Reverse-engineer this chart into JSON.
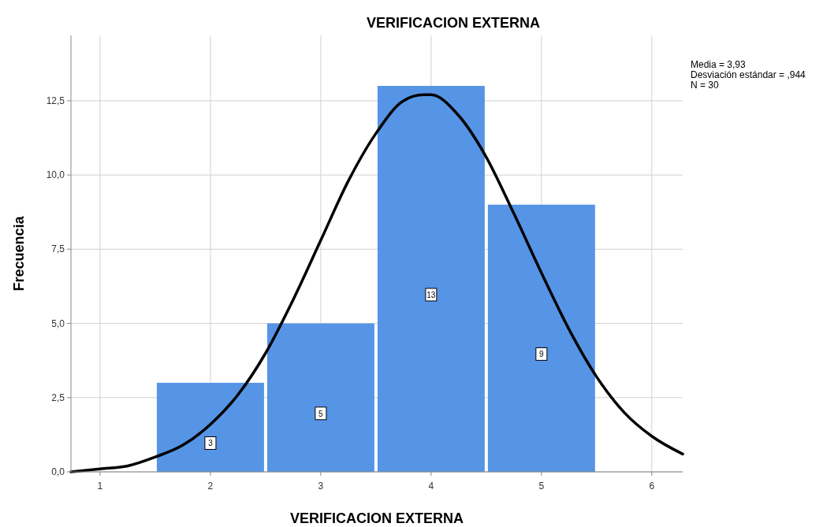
{
  "chart_data": {
    "type": "histogram",
    "title": "VERIFICACION EXTERNA",
    "xlabel": "VERIFICACION EXTERNA",
    "ylabel": "Frecuencia",
    "annotations": [
      "Media = 3,93",
      "Desviación estándar = ,944",
      "N = 30"
    ],
    "xlim": [
      0.736,
      6.28
    ],
    "xticks": [
      1,
      2,
      3,
      4,
      5,
      6
    ],
    "ylim": [
      0,
      14.7
    ],
    "yticks": [
      {
        "value": 0,
        "label": "0,0"
      },
      {
        "value": 2.5,
        "label": "2,5"
      },
      {
        "value": 5,
        "label": "5,0"
      },
      {
        "value": 7.5,
        "label": "7,5"
      },
      {
        "value": 10,
        "label": "10,0"
      },
      {
        "value": 12.5,
        "label": "12,5"
      }
    ],
    "grid": true,
    "series": [
      {
        "bins": [
          1.5,
          2.5,
          3.5,
          4.5,
          5.5
        ],
        "values": [
          3,
          5,
          13,
          9
        ],
        "value_labels": [
          "3",
          "5",
          "13",
          "9"
        ],
        "color": "#5694e6"
      },
      {
        "type": "line",
        "color": "#000000",
        "x": [
          0.736,
          1,
          1.25,
          1.5,
          1.75,
          2,
          2.25,
          2.5,
          2.75,
          3,
          3.25,
          3.5,
          3.75,
          3.93,
          4,
          4.25,
          4.5,
          4.75,
          5,
          5.25,
          5.5,
          5.75,
          6,
          6.28
        ],
        "values": [
          0.0,
          0.1,
          0.2,
          0.5,
          0.9,
          1.6,
          2.6,
          4.0,
          5.8,
          7.8,
          9.8,
          11.4,
          12.5,
          12.7,
          12.7,
          12.0,
          10.6,
          8.7,
          6.7,
          4.8,
          3.2,
          2.0,
          1.2,
          0.6
        ]
      }
    ]
  }
}
